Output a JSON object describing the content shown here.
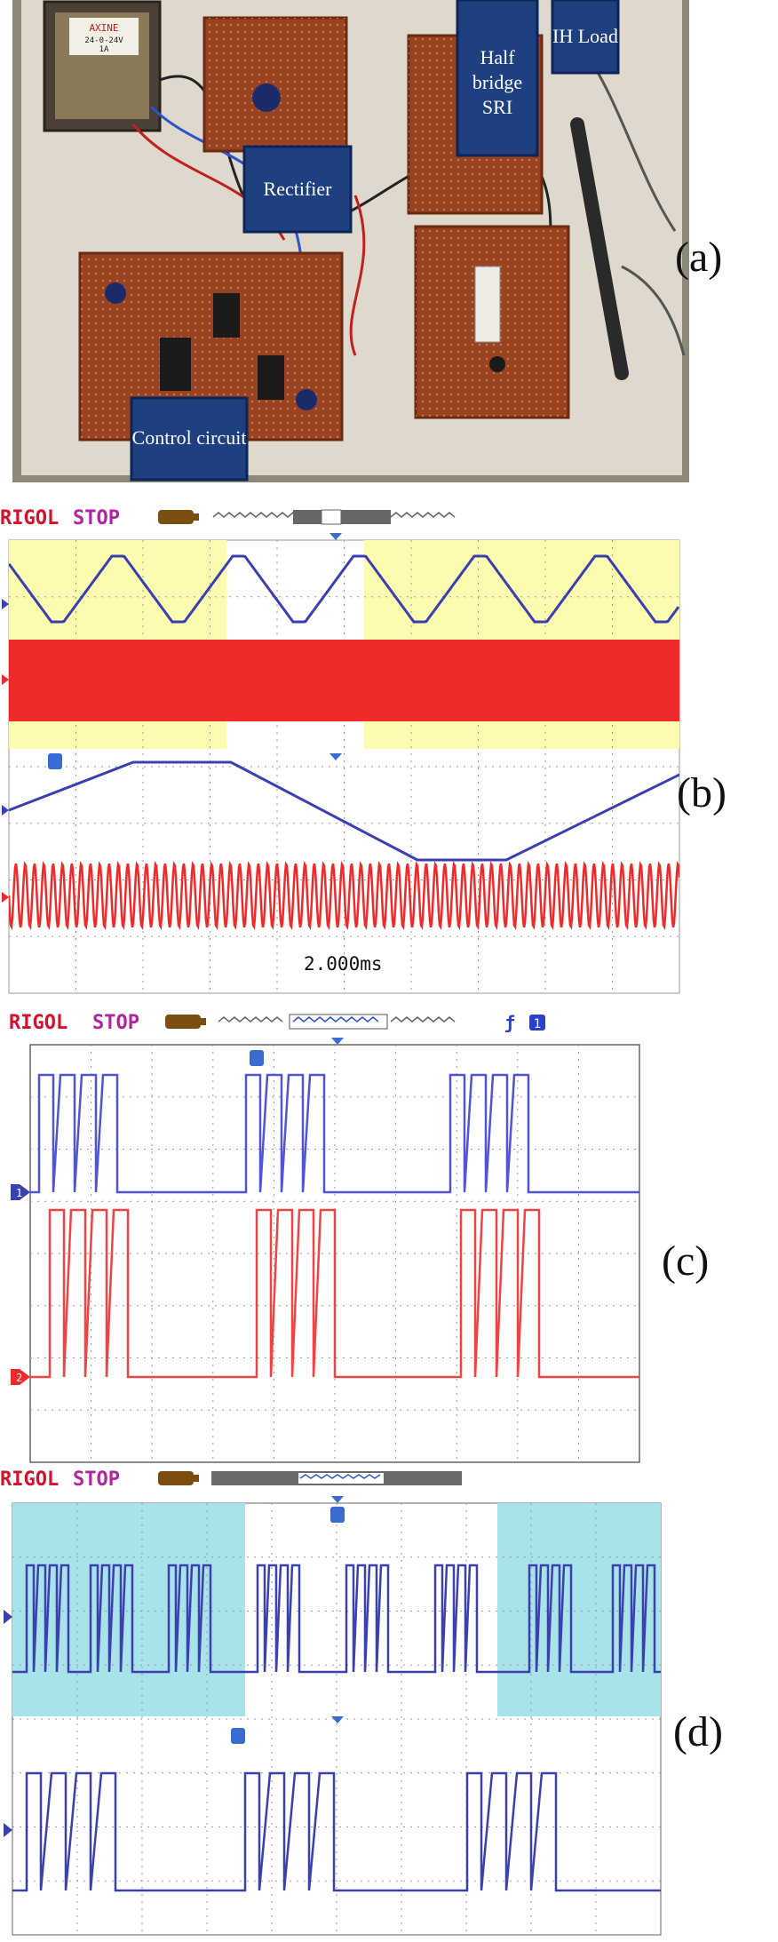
{
  "panels": {
    "a": {
      "label": "(a)",
      "tags": {
        "rectifier": "Rectifier",
        "half_bridge_1": "Half",
        "half_bridge_2": "bridge",
        "half_bridge_3": "SRI",
        "ih_load": "IH Load",
        "control": "Control circuit",
        "transformer_1": "AXINE",
        "transformer_2": "24-0-24V",
        "transformer_3": "1A"
      }
    },
    "b": {
      "label": "(b)",
      "brand": "RIGOL",
      "status": "STOP",
      "timebase": "2.000ms"
    },
    "c": {
      "label": "(c)",
      "brand": "RIGOL",
      "status": "STOP",
      "ch1": "1",
      "ch2": "2",
      "trigger_ch": "1"
    },
    "d": {
      "label": "(d)",
      "brand": "RIGOL",
      "status": "STOP"
    }
  },
  "colors": {
    "scope_blue": "#3a40b0",
    "scope_red": "#ee2a2a",
    "highlight_yellow": "#fdfbb0",
    "highlight_cyan": "#a9e3ea",
    "rigol_red": "#d2112d",
    "stop_purple": "#b0269e"
  }
}
